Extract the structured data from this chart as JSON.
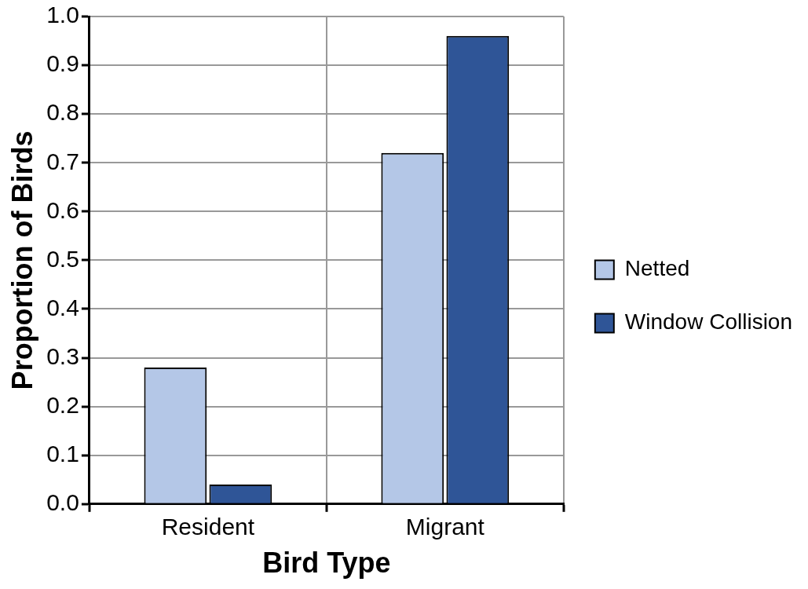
{
  "chart_data": {
    "type": "bar",
    "xlabel": "Bird Type",
    "ylabel": "Proportion of Birds",
    "categories": [
      "Resident",
      "Migrant"
    ],
    "series": [
      {
        "name": "Netted",
        "color": "#b4c7e7",
        "values": [
          0.28,
          0.72
        ]
      },
      {
        "name": "Window Collision",
        "color": "#2f5597",
        "values": [
          0.04,
          0.96
        ]
      }
    ],
    "ylim": [
      0,
      1
    ],
    "yticks": [
      {
        "value": 0,
        "label": "0.0"
      },
      {
        "value": 0.1,
        "label": "0.1"
      },
      {
        "value": 0.2,
        "label": "0.2"
      },
      {
        "value": 0.3,
        "label": "0.3"
      },
      {
        "value": 0.4,
        "label": "0.4"
      },
      {
        "value": 0.5,
        "label": "0.5"
      },
      {
        "value": 0.6,
        "label": "0.6"
      },
      {
        "value": 0.7,
        "label": "0.7"
      },
      {
        "value": 0.8,
        "label": "0.8"
      },
      {
        "value": 0.9,
        "label": "0.9"
      },
      {
        "value": 1,
        "label": "1.0"
      }
    ],
    "grid": true,
    "legend": "right"
  }
}
